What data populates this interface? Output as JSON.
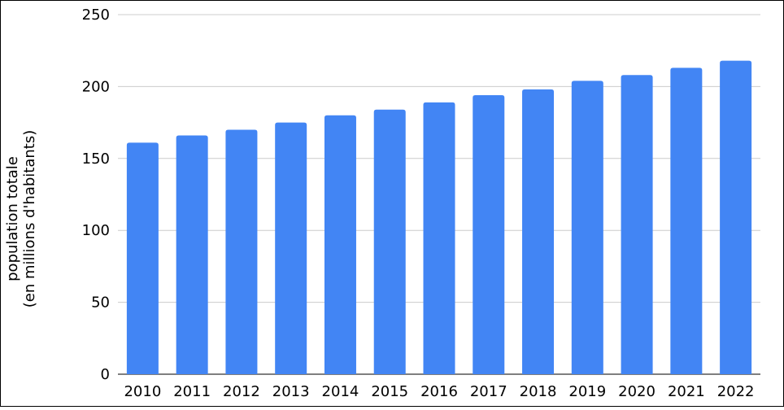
{
  "chart_data": {
    "type": "bar",
    "title": "",
    "xlabel": "",
    "ylabel_line1": "population totale",
    "ylabel_line2": "(en millions d'habitants)",
    "categories": [
      "2010",
      "2011",
      "2012",
      "2013",
      "2014",
      "2015",
      "2016",
      "2017",
      "2018",
      "2019",
      "2020",
      "2021",
      "2022"
    ],
    "values": [
      161,
      166,
      170,
      175,
      180,
      184,
      189,
      194,
      198,
      204,
      208,
      213,
      218
    ],
    "ylim": [
      0,
      250
    ],
    "yticks": [
      0,
      50,
      100,
      150,
      200,
      250
    ],
    "grid": true,
    "bar_color": "#4285f4",
    "grid_color": "#cccccc"
  }
}
